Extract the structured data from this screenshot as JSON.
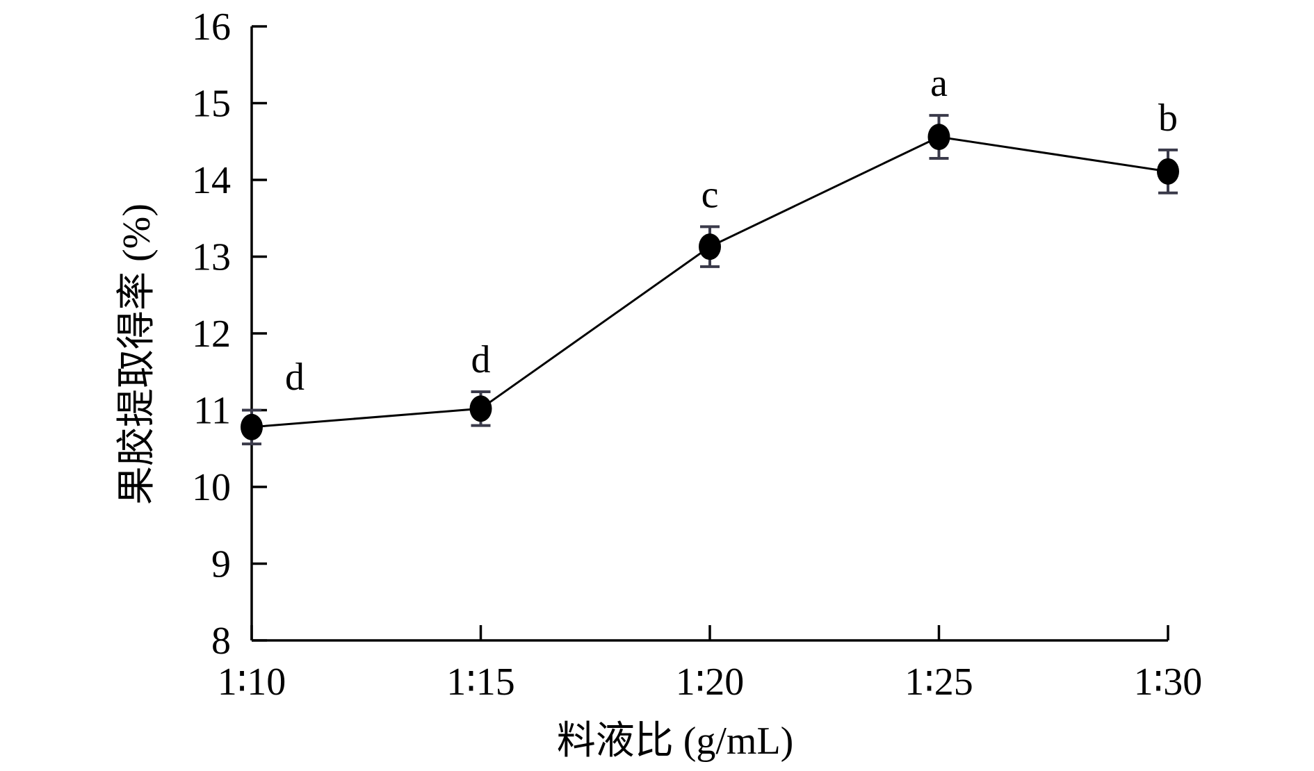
{
  "chart_data": {
    "type": "line",
    "title": "",
    "xlabel": "料液比 (g/mL)",
    "ylabel": "果胶提取得率 (%)",
    "ylim": [
      8,
      16
    ],
    "yticks": [
      "8",
      "9",
      "10",
      "11",
      "12",
      "13",
      "14",
      "15",
      "16"
    ],
    "categories": [
      "1∶10",
      "1∶15",
      "1∶20",
      "1∶25",
      "1∶30"
    ],
    "series": [
      {
        "values": [
          10.78,
          11.02,
          13.13,
          14.56,
          14.11
        ],
        "errors": [
          0.22,
          0.22,
          0.26,
          0.28,
          0.28
        ],
        "significance": [
          "d",
          "d",
          "c",
          "a",
          "b"
        ]
      }
    ],
    "grid": false,
    "legend": "none",
    "colors": {
      "line": "#000000",
      "marker": "#000000",
      "error_bar": "#3a3a4a"
    }
  }
}
